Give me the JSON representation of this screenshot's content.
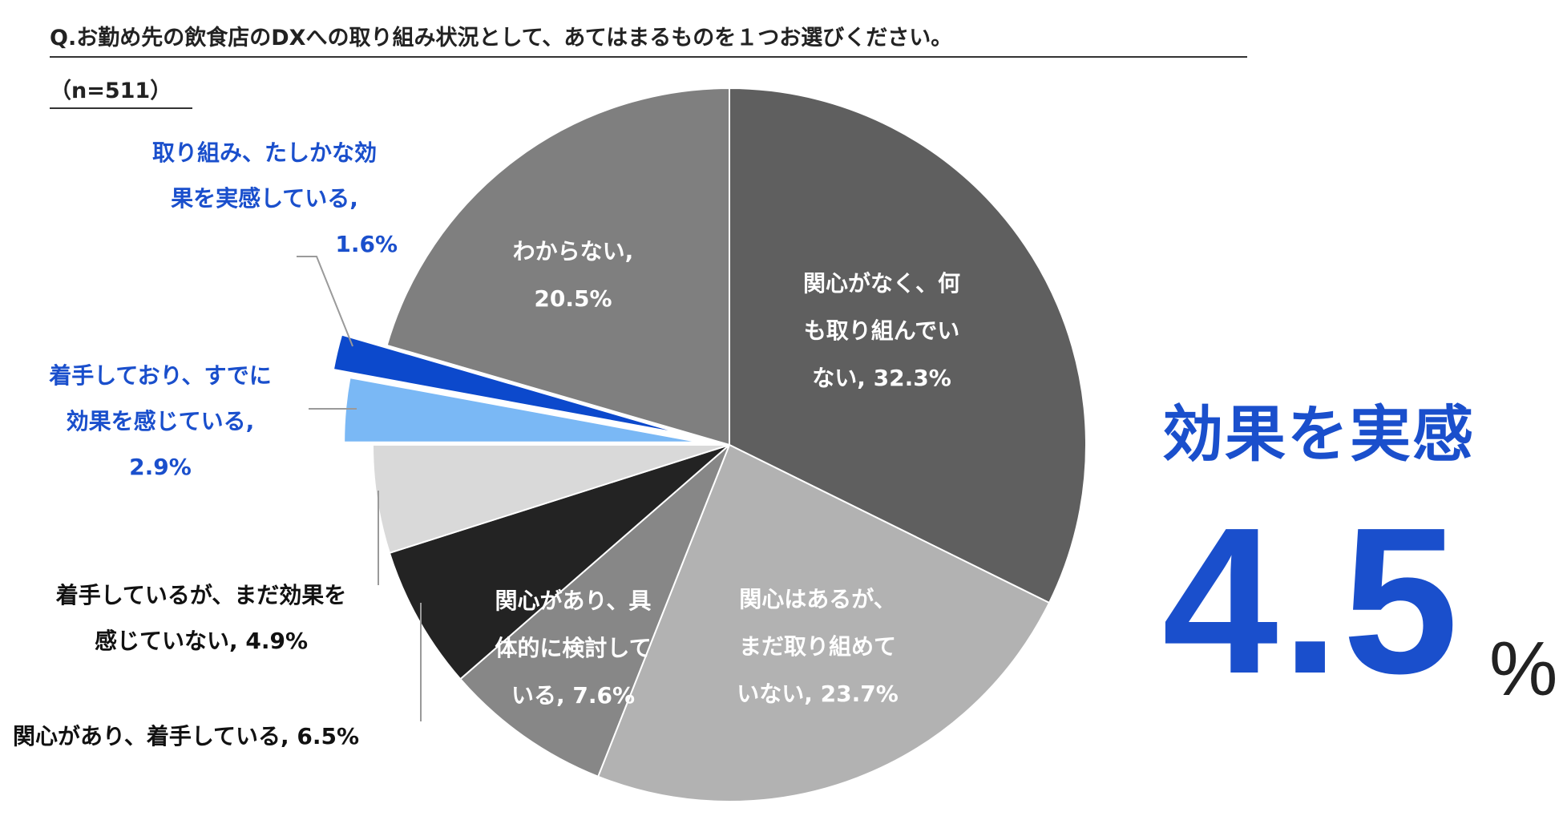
{
  "question": "Q.お勤め先の飲食店のDXへの取り組み状況として、あてはまるものを１つお選びください。",
  "sample": "（n=511）",
  "chart_data": {
    "type": "pie",
    "slices": [
      {
        "label": "関心がなく、何も取り組んでいない",
        "value": 32.3,
        "display": "32.3%",
        "color": "#5f5f5f"
      },
      {
        "label": "関心はあるが、まだ取り組めていない",
        "value": 23.7,
        "display": "23.7%",
        "color": "#b2b2b2"
      },
      {
        "label": "関心があり、具体的に検討している",
        "value": 7.6,
        "display": "7.6%",
        "color": "#878787"
      },
      {
        "label": "関心があり、着手している",
        "value": 6.5,
        "display": "6.5%",
        "color": "#232323"
      },
      {
        "label": "着手しているが、まだ効果を感じていない",
        "value": 4.9,
        "display": "4.9%",
        "color": "#d9d9d9"
      },
      {
        "label": "着手しており、すでに効果を感じている",
        "value": 2.9,
        "display": "2.9%",
        "color": "#7ab8f5"
      },
      {
        "label": "取り組み、たしかな効果を実感している",
        "value": 1.6,
        "display": "1.6%",
        "color": "#0c49cc"
      },
      {
        "label": "わからない",
        "value": 20.5,
        "display": "20.5%",
        "color": "#7f7f7f"
      }
    ]
  },
  "labels": {
    "s0": [
      "関心がなく、何",
      "も取り組んでい",
      "ない, 32.3%"
    ],
    "s1": [
      "関心はあるが、",
      "まだ取り組めて",
      "いない, 23.7%"
    ],
    "s2": [
      "関心があり、具",
      "体的に検討して",
      "いる, 7.6%"
    ],
    "s3": [
      "関心があり、着手している, 6.5%"
    ],
    "s4": [
      "着手しているが、まだ効果を",
      "感じていない, 4.9%"
    ],
    "s5": [
      "着手しており、すでに",
      "効果を感じている,",
      "2.9%"
    ],
    "s6": [
      "取り組み、たしかな効",
      "果を実感している,",
      "1.6%"
    ],
    "s7": [
      "わからない,",
      "20.5%"
    ]
  },
  "callout": {
    "title": "効果を実感",
    "number": "4.5",
    "unit": "%"
  }
}
